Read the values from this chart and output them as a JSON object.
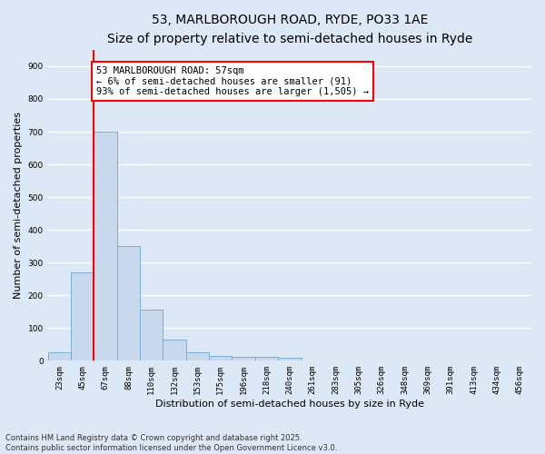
{
  "title_line1": "53, MARLBOROUGH ROAD, RYDE, PO33 1AE",
  "title_line2": "Size of property relative to semi-detached houses in Ryde",
  "xlabel": "Distribution of semi-detached houses by size in Ryde",
  "ylabel": "Number of semi-detached properties",
  "categories": [
    "23sqm",
    "45sqm",
    "67sqm",
    "88sqm",
    "110sqm",
    "132sqm",
    "153sqm",
    "175sqm",
    "196sqm",
    "218sqm",
    "240sqm",
    "261sqm",
    "283sqm",
    "305sqm",
    "326sqm",
    "348sqm",
    "369sqm",
    "391sqm",
    "413sqm",
    "434sqm",
    "456sqm"
  ],
  "values": [
    25,
    270,
    700,
    350,
    155,
    65,
    25,
    15,
    12,
    12,
    10,
    0,
    0,
    0,
    0,
    0,
    0,
    0,
    0,
    0,
    0
  ],
  "bar_color": "#c8d9ed",
  "bar_edge_color": "#7aaed6",
  "vline_color": "red",
  "annotation_text": "53 MARLBOROUGH ROAD: 57sqm\n← 6% of semi-detached houses are smaller (91)\n93% of semi-detached houses are larger (1,505) →",
  "annotation_box_color": "white",
  "annotation_box_edge_color": "red",
  "ylim": [
    0,
    950
  ],
  "yticks": [
    0,
    100,
    200,
    300,
    400,
    500,
    600,
    700,
    800,
    900
  ],
  "background_color": "#dce8f5",
  "grid_color": "white",
  "footer_text": "Contains HM Land Registry data © Crown copyright and database right 2025.\nContains public sector information licensed under the Open Government Licence v3.0.",
  "title_fontsize": 10,
  "subtitle_fontsize": 9,
  "tick_fontsize": 6.5,
  "label_fontsize": 8,
  "annotation_fontsize": 7.5,
  "footer_fontsize": 6
}
